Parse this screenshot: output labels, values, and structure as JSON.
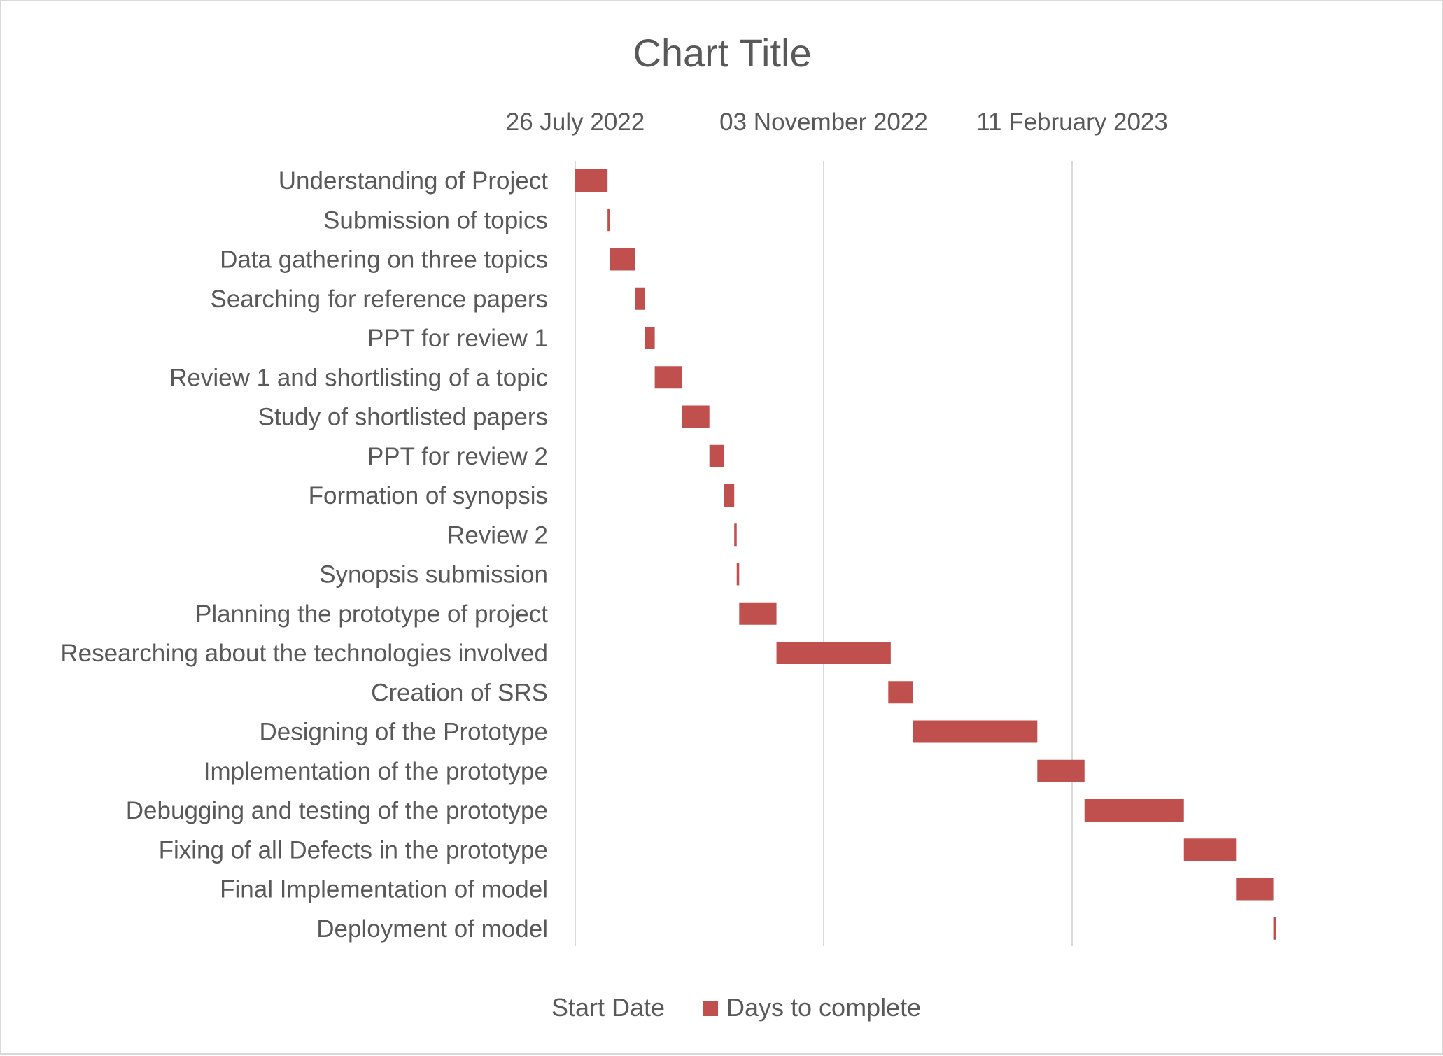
{
  "chart_data": {
    "type": "bar",
    "orientation": "horizontal-gantt",
    "title": "Chart Title",
    "x_axis_position": "top",
    "x_tick_labels": [
      "26 July 2022",
      "03 November 2022",
      "11 February 2023"
    ],
    "x_ticks": [
      "2022-07-26",
      "2022-11-03",
      "2023-02-11"
    ],
    "xlim": [
      "2022-07-26",
      "2023-05-22"
    ],
    "vertical_gridlines": true,
    "categories": [
      "Understanding of Project",
      "Submission of topics",
      "Data gathering on three topics",
      "Searching for reference papers",
      "PPT for review 1",
      "Review 1 and shortlisting of a topic",
      "Study of shortlisted papers",
      "PPT for review 2",
      "Formation of synopsis",
      "Review 2",
      "Synopsis submission",
      "Planning the prototype of project",
      "Researching about the technologies involved",
      "Creation of SRS",
      "Designing of the Prototype",
      "Implementation of the prototype",
      "Debugging and testing of the prototype",
      "Fixing of all Defects in the prototype",
      "Final Implementation of model",
      "Deployment of model"
    ],
    "series": [
      {
        "name": "Start Date",
        "color": "none",
        "values": [
          "2022-07-26",
          "2022-08-08",
          "2022-08-09",
          "2022-08-19",
          "2022-08-23",
          "2022-08-27",
          "2022-09-07",
          "2022-09-18",
          "2022-09-24",
          "2022-09-28",
          "2022-09-29",
          "2022-09-30",
          "2022-10-15",
          "2022-11-29",
          "2022-12-09",
          "2023-01-28",
          "2023-02-16",
          "2023-03-28",
          "2023-04-18",
          "2023-05-03"
        ]
      },
      {
        "name": "Days to complete",
        "color": "#c0504d",
        "values": [
          13,
          1,
          10,
          4,
          4,
          11,
          11,
          6,
          4,
          1,
          1,
          15,
          46,
          10,
          50,
          19,
          40,
          21,
          15,
          1
        ]
      }
    ],
    "legend": {
      "position": "bottom",
      "entries": [
        "Start Date",
        "Days to complete"
      ]
    }
  }
}
